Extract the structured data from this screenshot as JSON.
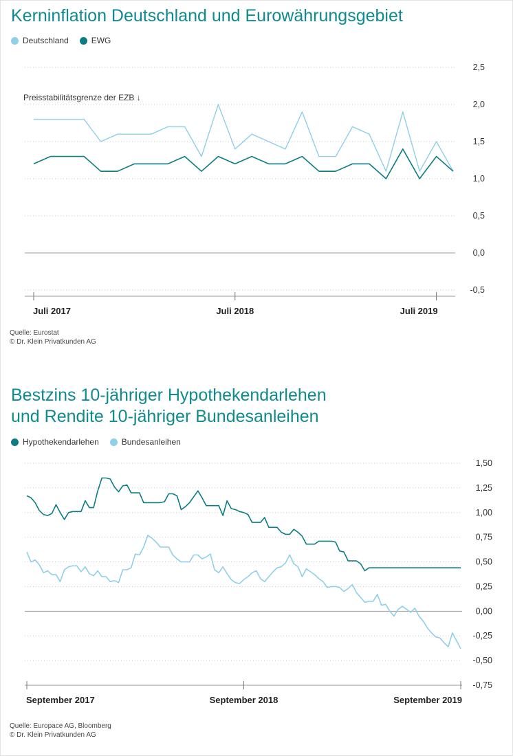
{
  "charts": [
    {
      "title_lines": [
        "Kerninflation Deutschland und Eurowährungsgebiet"
      ],
      "source_lines": [
        "Quelle: Eurostat",
        "© Dr. Klein Privatkunden AG"
      ]
    },
    {
      "title_lines": [
        "Bestzins 10-jähriger Hypothekendarlehen",
        "und Rendite 10-jähriger Bundesanleihen"
      ],
      "source_lines": [
        "Quelle: Europace AG, Bloomberg",
        "© Dr. Klein Privatkunden AG"
      ]
    }
  ],
  "chart_data": [
    {
      "type": "line",
      "title": "Kerninflation Deutschland und Eurowährungsgebiet",
      "xlabel": "",
      "ylabel": "",
      "ylim": [
        -0.5,
        2.5
      ],
      "y_ticks": [
        "2,5",
        "2,0",
        "1,5",
        "1,0",
        "0,5",
        "0,0",
        "-0,5"
      ],
      "y_tick_values": [
        2.5,
        2.0,
        1.5,
        1.0,
        0.5,
        0.0,
        -0.5
      ],
      "x_tick_labels": [
        "Juli 2017",
        "Juli 2018",
        "Juli 2019"
      ],
      "x_tick_index": [
        0,
        12,
        24
      ],
      "grid": "horizontal dotted",
      "legend_position": "top-left",
      "annotation": "Preisstabilitätsgrenze der EZB ↓",
      "series": [
        {
          "name": "Deutschland",
          "color": "#8fcfe8",
          "values": [
            1.8,
            1.8,
            1.8,
            1.8,
            1.5,
            1.6,
            1.6,
            1.6,
            1.7,
            1.7,
            1.3,
            2.0,
            1.4,
            1.6,
            1.5,
            1.4,
            1.9,
            1.3,
            1.3,
            1.7,
            1.6,
            1.1,
            1.9,
            1.1,
            1.5,
            1.1
          ]
        },
        {
          "name": "EWG",
          "color": "#0b7c82",
          "values": [
            1.2,
            1.3,
            1.3,
            1.3,
            1.1,
            1.1,
            1.2,
            1.2,
            1.2,
            1.3,
            1.1,
            1.3,
            1.2,
            1.3,
            1.2,
            1.2,
            1.3,
            1.1,
            1.1,
            1.2,
            1.2,
            1.0,
            1.4,
            1.0,
            1.3,
            1.1
          ]
        }
      ]
    },
    {
      "type": "line",
      "title": "Bestzins 10-jähriger Hypothekendarlehen und Rendite 10-jähriger Bundesanleihen",
      "xlabel": "",
      "ylabel": "",
      "ylim": [
        -0.75,
        1.5
      ],
      "y_ticks": [
        "1,50",
        "1,25",
        "1,00",
        "0,75",
        "0,50",
        "0,25",
        "0,00",
        "-0,25",
        "-0,50",
        "-0,75"
      ],
      "y_tick_values": [
        1.5,
        1.25,
        1.0,
        0.75,
        0.5,
        0.25,
        0.0,
        -0.25,
        -0.5,
        -0.75
      ],
      "x_tick_labels": [
        "September 2017",
        "September 2018",
        "September 2019"
      ],
      "x_tick_index": [
        0,
        52,
        104
      ],
      "grid": "horizontal dotted",
      "legend_position": "top-left",
      "series": [
        {
          "name": "Hypothekendarlehen",
          "color": "#0b7c82",
          "values": [
            1.17,
            1.15,
            1.1,
            1.02,
            0.98,
            0.97,
            0.99,
            1.08,
            1.0,
            0.93,
            1.0,
            1.01,
            1.01,
            1.01,
            1.12,
            1.05,
            1.05,
            1.22,
            1.35,
            1.35,
            1.34,
            1.26,
            1.21,
            1.27,
            1.28,
            1.2,
            1.2,
            1.2,
            1.1,
            1.1,
            1.1,
            1.1,
            1.1,
            1.11,
            1.19,
            1.19,
            1.17,
            1.03,
            1.06,
            1.1,
            1.16,
            1.22,
            1.15,
            1.07,
            1.07,
            1.07,
            1.07,
            0.97,
            1.12,
            1.04,
            1.03,
            1.01,
            1.0,
            0.98,
            0.9,
            0.9,
            0.9,
            0.95,
            0.85,
            0.85,
            0.85,
            0.8,
            0.78,
            0.78,
            0.83,
            0.8,
            0.76,
            0.68,
            0.68,
            0.68,
            0.71,
            0.71,
            0.71,
            0.71,
            0.7,
            0.61,
            0.6,
            0.51,
            0.51,
            0.51,
            0.48,
            0.41,
            0.44,
            0.44,
            0.44,
            0.44,
            0.44,
            0.44,
            0.44,
            0.44,
            0.44,
            0.44,
            0.44,
            0.44,
            0.44,
            0.44,
            0.44,
            0.44,
            0.44,
            0.44,
            0.44,
            0.44,
            0.44,
            0.44,
            0.44
          ]
        },
        {
          "name": "Bundesanleihen",
          "color": "#8fcfe8",
          "values": [
            0.6,
            0.5,
            0.52,
            0.47,
            0.39,
            0.41,
            0.37,
            0.37,
            0.3,
            0.42,
            0.45,
            0.46,
            0.46,
            0.4,
            0.45,
            0.38,
            0.36,
            0.41,
            0.35,
            0.35,
            0.3,
            0.31,
            0.29,
            0.42,
            0.42,
            0.44,
            0.58,
            0.57,
            0.65,
            0.77,
            0.74,
            0.7,
            0.65,
            0.65,
            0.65,
            0.57,
            0.53,
            0.5,
            0.5,
            0.5,
            0.57,
            0.57,
            0.53,
            0.55,
            0.58,
            0.42,
            0.39,
            0.45,
            0.38,
            0.32,
            0.29,
            0.28,
            0.32,
            0.35,
            0.39,
            0.41,
            0.33,
            0.3,
            0.35,
            0.4,
            0.44,
            0.45,
            0.49,
            0.57,
            0.48,
            0.45,
            0.35,
            0.43,
            0.4,
            0.37,
            0.33,
            0.3,
            0.24,
            0.25,
            0.25,
            0.24,
            0.2,
            0.23,
            0.27,
            0.19,
            0.14,
            0.09,
            0.1,
            0.1,
            0.17,
            0.06,
            0.07,
            0.0,
            -0.05,
            0.02,
            0.05,
            0.02,
            -0.01,
            0.03,
            -0.05,
            -0.1,
            -0.17,
            -0.22,
            -0.26,
            -0.27,
            -0.32,
            -0.36,
            -0.22,
            -0.3,
            -0.38
          ]
        }
      ]
    }
  ]
}
